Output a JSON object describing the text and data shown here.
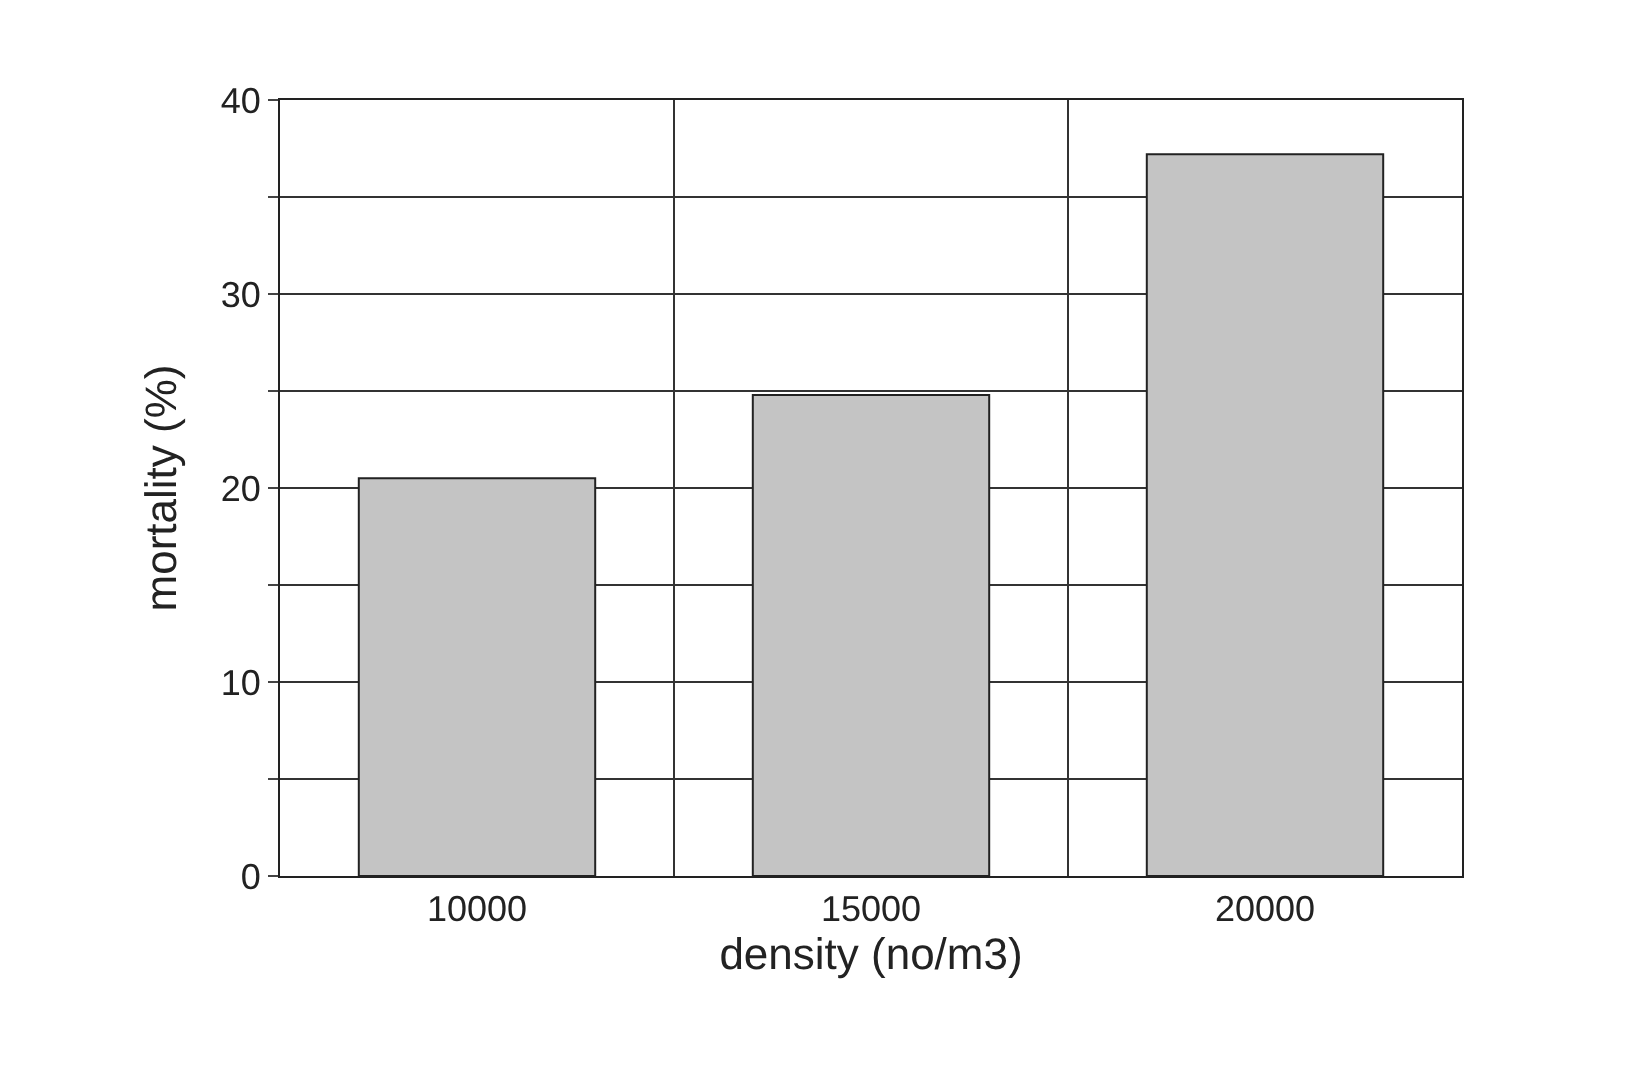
{
  "chart_data": {
    "type": "bar",
    "xlabel": "density (no/m3)",
    "ylabel": "mortality (%)",
    "categories": [
      "10000",
      "15000",
      "20000"
    ],
    "values": [
      20.5,
      24.8,
      37.2
    ],
    "color": "#c4c4c4",
    "ylim": [
      0,
      40
    ],
    "yticks": [
      0,
      {
        "value": 5,
        "label": null
      },
      10,
      {
        "value": 15,
        "label": null
      },
      20,
      {
        "value": 25,
        "label": null
      },
      30,
      {
        "value": 35,
        "label": null
      },
      40
    ],
    "grid": true
  }
}
